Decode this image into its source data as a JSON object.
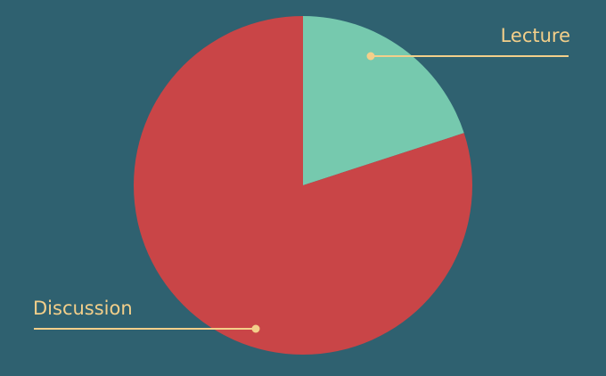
{
  "chart_data": {
    "type": "pie",
    "title": "",
    "categories": [
      "Lecture",
      "Discussion"
    ],
    "values": [
      20,
      80
    ],
    "unit": "percent",
    "start_angle": "12 o'clock",
    "direction": "clockwise",
    "slice_colors": [
      "#76c9ae",
      "#c94547"
    ],
    "label_placement": "outside, leader lines",
    "legend": "none"
  },
  "colors": {
    "background": "#2f6170",
    "label_text": "#f3cf8a",
    "leader_line": "#f3cf8a"
  }
}
